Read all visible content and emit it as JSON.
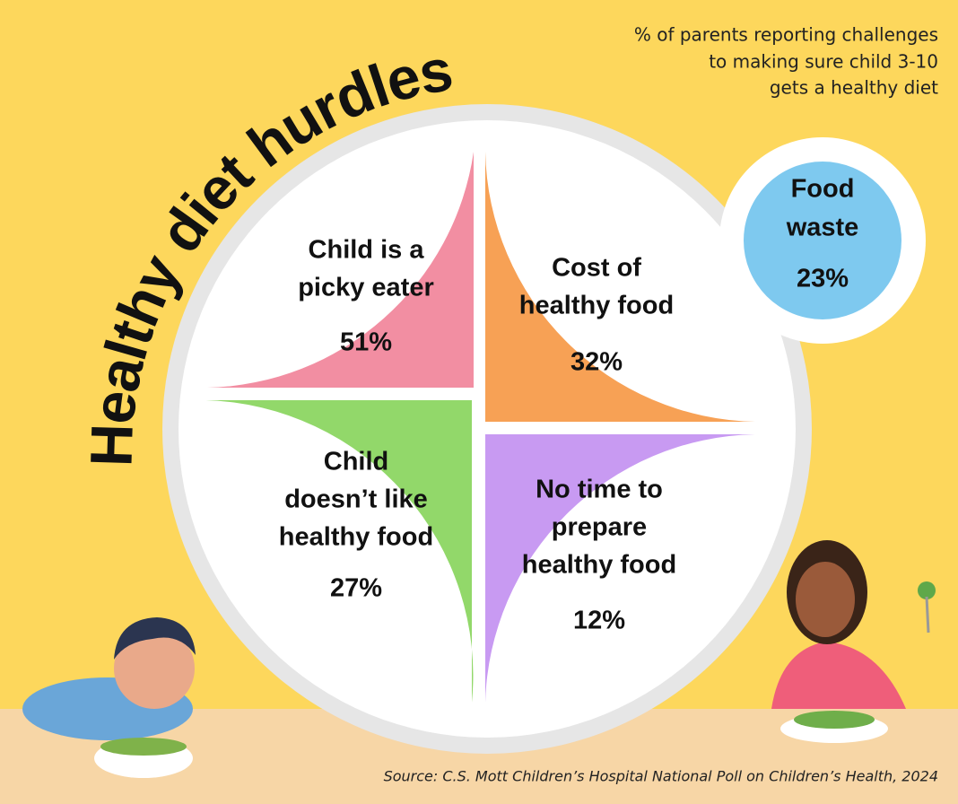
{
  "title": "Healthy diet hurdles",
  "subtitle": [
    "% of parents reporting challenges",
    "to making sure child 3-10",
    "gets a healthy diet"
  ],
  "items": [
    {
      "label": [
        "Child is a",
        "picky eater"
      ],
      "value": "51%"
    },
    {
      "label": [
        "Cost of",
        "healthy food"
      ],
      "value": "32%"
    },
    {
      "label": [
        "Child",
        "doesn’t like",
        "healthy food"
      ],
      "value": "27%"
    },
    {
      "label": [
        "No time to",
        "prepare",
        "healthy food"
      ],
      "value": "12%"
    },
    {
      "label": [
        "Food",
        "waste"
      ],
      "value": "23%"
    }
  ],
  "source": "Source: C.S. Mott Children’s Hospital National Poll on Children’s Health, 2024"
}
